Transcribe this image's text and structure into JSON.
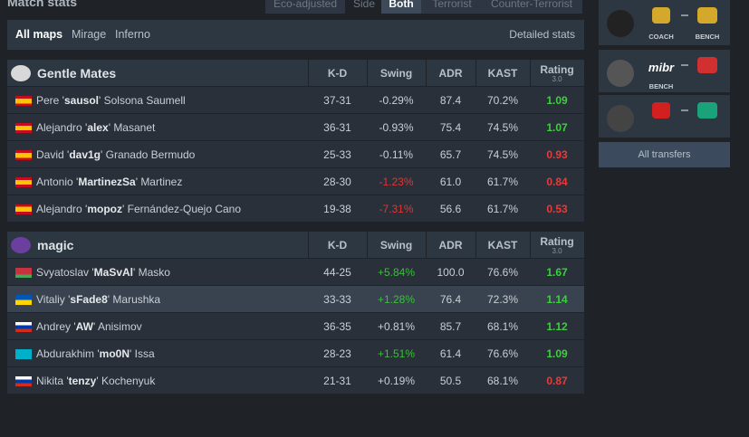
{
  "header": {
    "title": "Match stats",
    "toggles": [
      "Eco-adjusted",
      "Side",
      "Both",
      "Terrorist",
      "Counter-Terrorist"
    ]
  },
  "maps": {
    "items": [
      "All maps",
      "Mirage",
      "Inferno"
    ],
    "detailed": "Detailed stats"
  },
  "teams": [
    {
      "name": "Gentle Mates",
      "columns": [
        "K-D",
        "Swing",
        "ADR",
        "KAST",
        "Rating"
      ],
      "rating_sub": "3.0",
      "players": [
        {
          "name": [
            "Pere '",
            "sausol",
            "' Solsona Saumell"
          ],
          "flag": "es",
          "kd": "37-31",
          "swing": "-0.29%",
          "adr": "87.4",
          "kast": "70.2%",
          "rating": "1.09"
        },
        {
          "name": [
            "Alejandro '",
            "alex",
            "' Masanet"
          ],
          "flag": "es",
          "kd": "36-31",
          "swing": "-0.93%",
          "adr": "75.4",
          "kast": "74.5%",
          "rating": "1.07"
        },
        {
          "name": [
            "David '",
            "dav1g",
            "' Granado Bermudo"
          ],
          "flag": "es",
          "kd": "25-33",
          "swing": "-0.11%",
          "adr": "65.7",
          "kast": "74.5%",
          "rating": "0.93"
        },
        {
          "name": [
            "Antonio '",
            "MartinezSa",
            "' Martinez"
          ],
          "flag": "es",
          "kd": "28-30",
          "swing": "-1.23%",
          "adr": "61.0",
          "kast": "61.7%",
          "rating": "0.84"
        },
        {
          "name": [
            "Alejandro '",
            "mopoz",
            "' Fernández-Quejo Cano"
          ],
          "flag": "es",
          "kd": "19-38",
          "swing": "-7.31%",
          "adr": "56.6",
          "kast": "61.7%",
          "rating": "0.53"
        }
      ]
    },
    {
      "name": "magic",
      "columns": [
        "K-D",
        "Swing",
        "ADR",
        "KAST",
        "Rating"
      ],
      "rating_sub": "3.0",
      "players": [
        {
          "name": [
            "Svyatoslav '",
            "MaSvAl",
            "' Masko"
          ],
          "flag": "by",
          "kd": "44-25",
          "swing": "+5.84%",
          "adr": "100.0",
          "kast": "76.6%",
          "rating": "1.67"
        },
        {
          "name": [
            "Vitaliy '",
            "sFade8",
            "' Marushka"
          ],
          "flag": "ua",
          "kd": "33-33",
          "swing": "+1.28%",
          "adr": "76.4",
          "kast": "72.3%",
          "rating": "1.14"
        },
        {
          "name": [
            "Andrey '",
            "AW",
            "' Anisimov"
          ],
          "flag": "ru",
          "kd": "36-35",
          "swing": "+0.81%",
          "adr": "85.7",
          "kast": "68.1%",
          "rating": "1.12"
        },
        {
          "name": [
            "Abdurakhim '",
            "mo0N",
            "' Issa"
          ],
          "flag": "kz",
          "kd": "28-23",
          "swing": "+1.51%",
          "adr": "61.4",
          "kast": "76.6%",
          "rating": "1.09"
        },
        {
          "name": [
            "Nikita '",
            "tenzy",
            "' Kochenyuk"
          ],
          "flag": "ru",
          "kd": "21-31",
          "swing": "+0.19%",
          "adr": "50.5",
          "kast": "68.1%",
          "rating": "0.87"
        }
      ]
    }
  ],
  "transfers": {
    "items": [
      {
        "from_label": "COACH",
        "to_label": "BENCH"
      },
      {
        "from_logo": "mibr",
        "from_label": "BENCH"
      },
      {}
    ],
    "all": "All transfers"
  }
}
